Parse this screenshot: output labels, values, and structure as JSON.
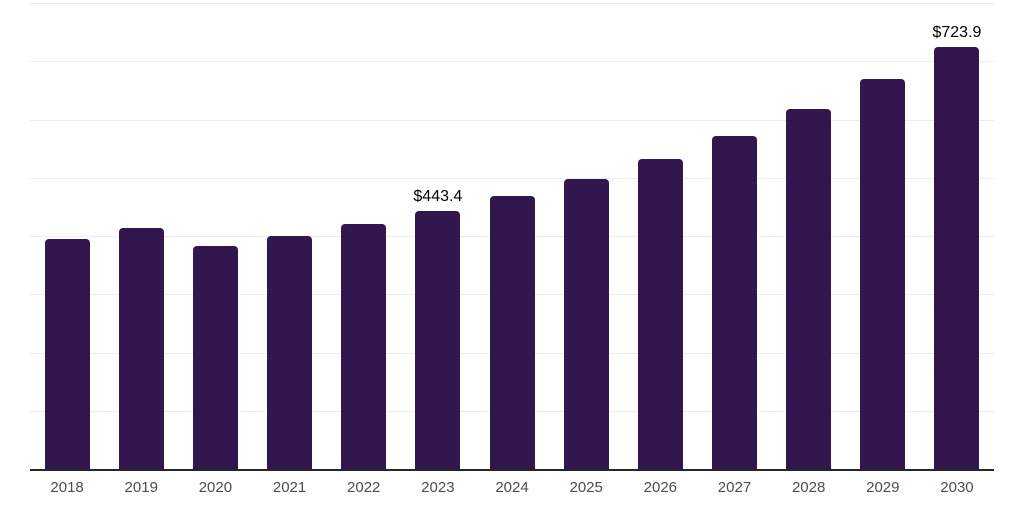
{
  "chart_data": {
    "type": "bar",
    "title": "",
    "xlabel": "",
    "ylabel": "",
    "categories": [
      "2018",
      "2019",
      "2020",
      "2021",
      "2022",
      "2023",
      "2024",
      "2025",
      "2026",
      "2027",
      "2028",
      "2029",
      "2030"
    ],
    "values": [
      395.5,
      414.3,
      383.5,
      400.6,
      421.1,
      443.4,
      469.1,
      498.2,
      532.4,
      571.8,
      618.0,
      669.4,
      723.9
    ],
    "data_labels": [
      "",
      "",
      "",
      "",
      "",
      "$443.4",
      "",
      "",
      "",
      "",
      "",
      "",
      "$723.9"
    ],
    "ylim": [
      0,
      800
    ],
    "gridline_values": [
      100,
      200,
      300,
      400,
      500,
      600,
      700,
      800
    ],
    "grid": "horizontal",
    "legend": "none",
    "colors": {
      "bar": "#31174e",
      "gridline": "#ededed",
      "axis_line": "#262626",
      "tick_label": "#4d4d4d",
      "data_label": "#000000",
      "background": "#ffffff"
    }
  }
}
